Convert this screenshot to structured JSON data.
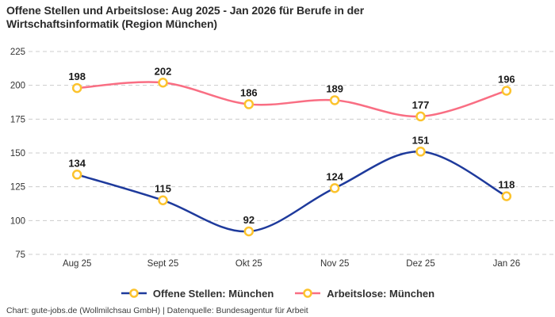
{
  "title": "Offene Stellen und Arbeitslose: Aug 2025 - Jan 2026 für Berufe in der\nWirtschaftsinformatik (Region München)",
  "footer": "Chart: gute-jobs.de (Wollmilchsau GmbH) | Datenquelle: Bundesagentur für Arbeit",
  "colors": {
    "offene_stellen": "#1e3a9c",
    "arbeitslose": "#f96e83",
    "marker_ring": "#fcc32d",
    "marker_fill": "#ffffff",
    "grid": "#cccccc",
    "title_text": "#2b2b2b",
    "tick_text": "#333333",
    "value_text": "#1a1a1a"
  },
  "chart_data": {
    "type": "line",
    "title": "Offene Stellen und Arbeitslose: Aug 2025 - Jan 2026 für Berufe in der Wirtschaftsinformatik (Region München)",
    "categories": [
      "Aug 25",
      "Sept 25",
      "Okt 25",
      "Nov 25",
      "Dez 25",
      "Jan 26"
    ],
    "series": [
      {
        "name": "Offene Stellen: München",
        "color_key": "offene_stellen",
        "values": [
          134,
          115,
          92,
          124,
          151,
          118
        ]
      },
      {
        "name": "Arbeitslose: München",
        "color_key": "arbeitslose",
        "values": [
          198,
          202,
          186,
          189,
          177,
          196
        ]
      }
    ],
    "yticks": [
      75,
      100,
      125,
      150,
      175,
      200,
      225
    ],
    "ylim": [
      75,
      225
    ],
    "xlabel": "",
    "ylabel": "",
    "grid": "horizontal-dashed",
    "legend_position": "bottom",
    "marker_style": "open-circle-gold",
    "line_smoothing": "curved"
  }
}
